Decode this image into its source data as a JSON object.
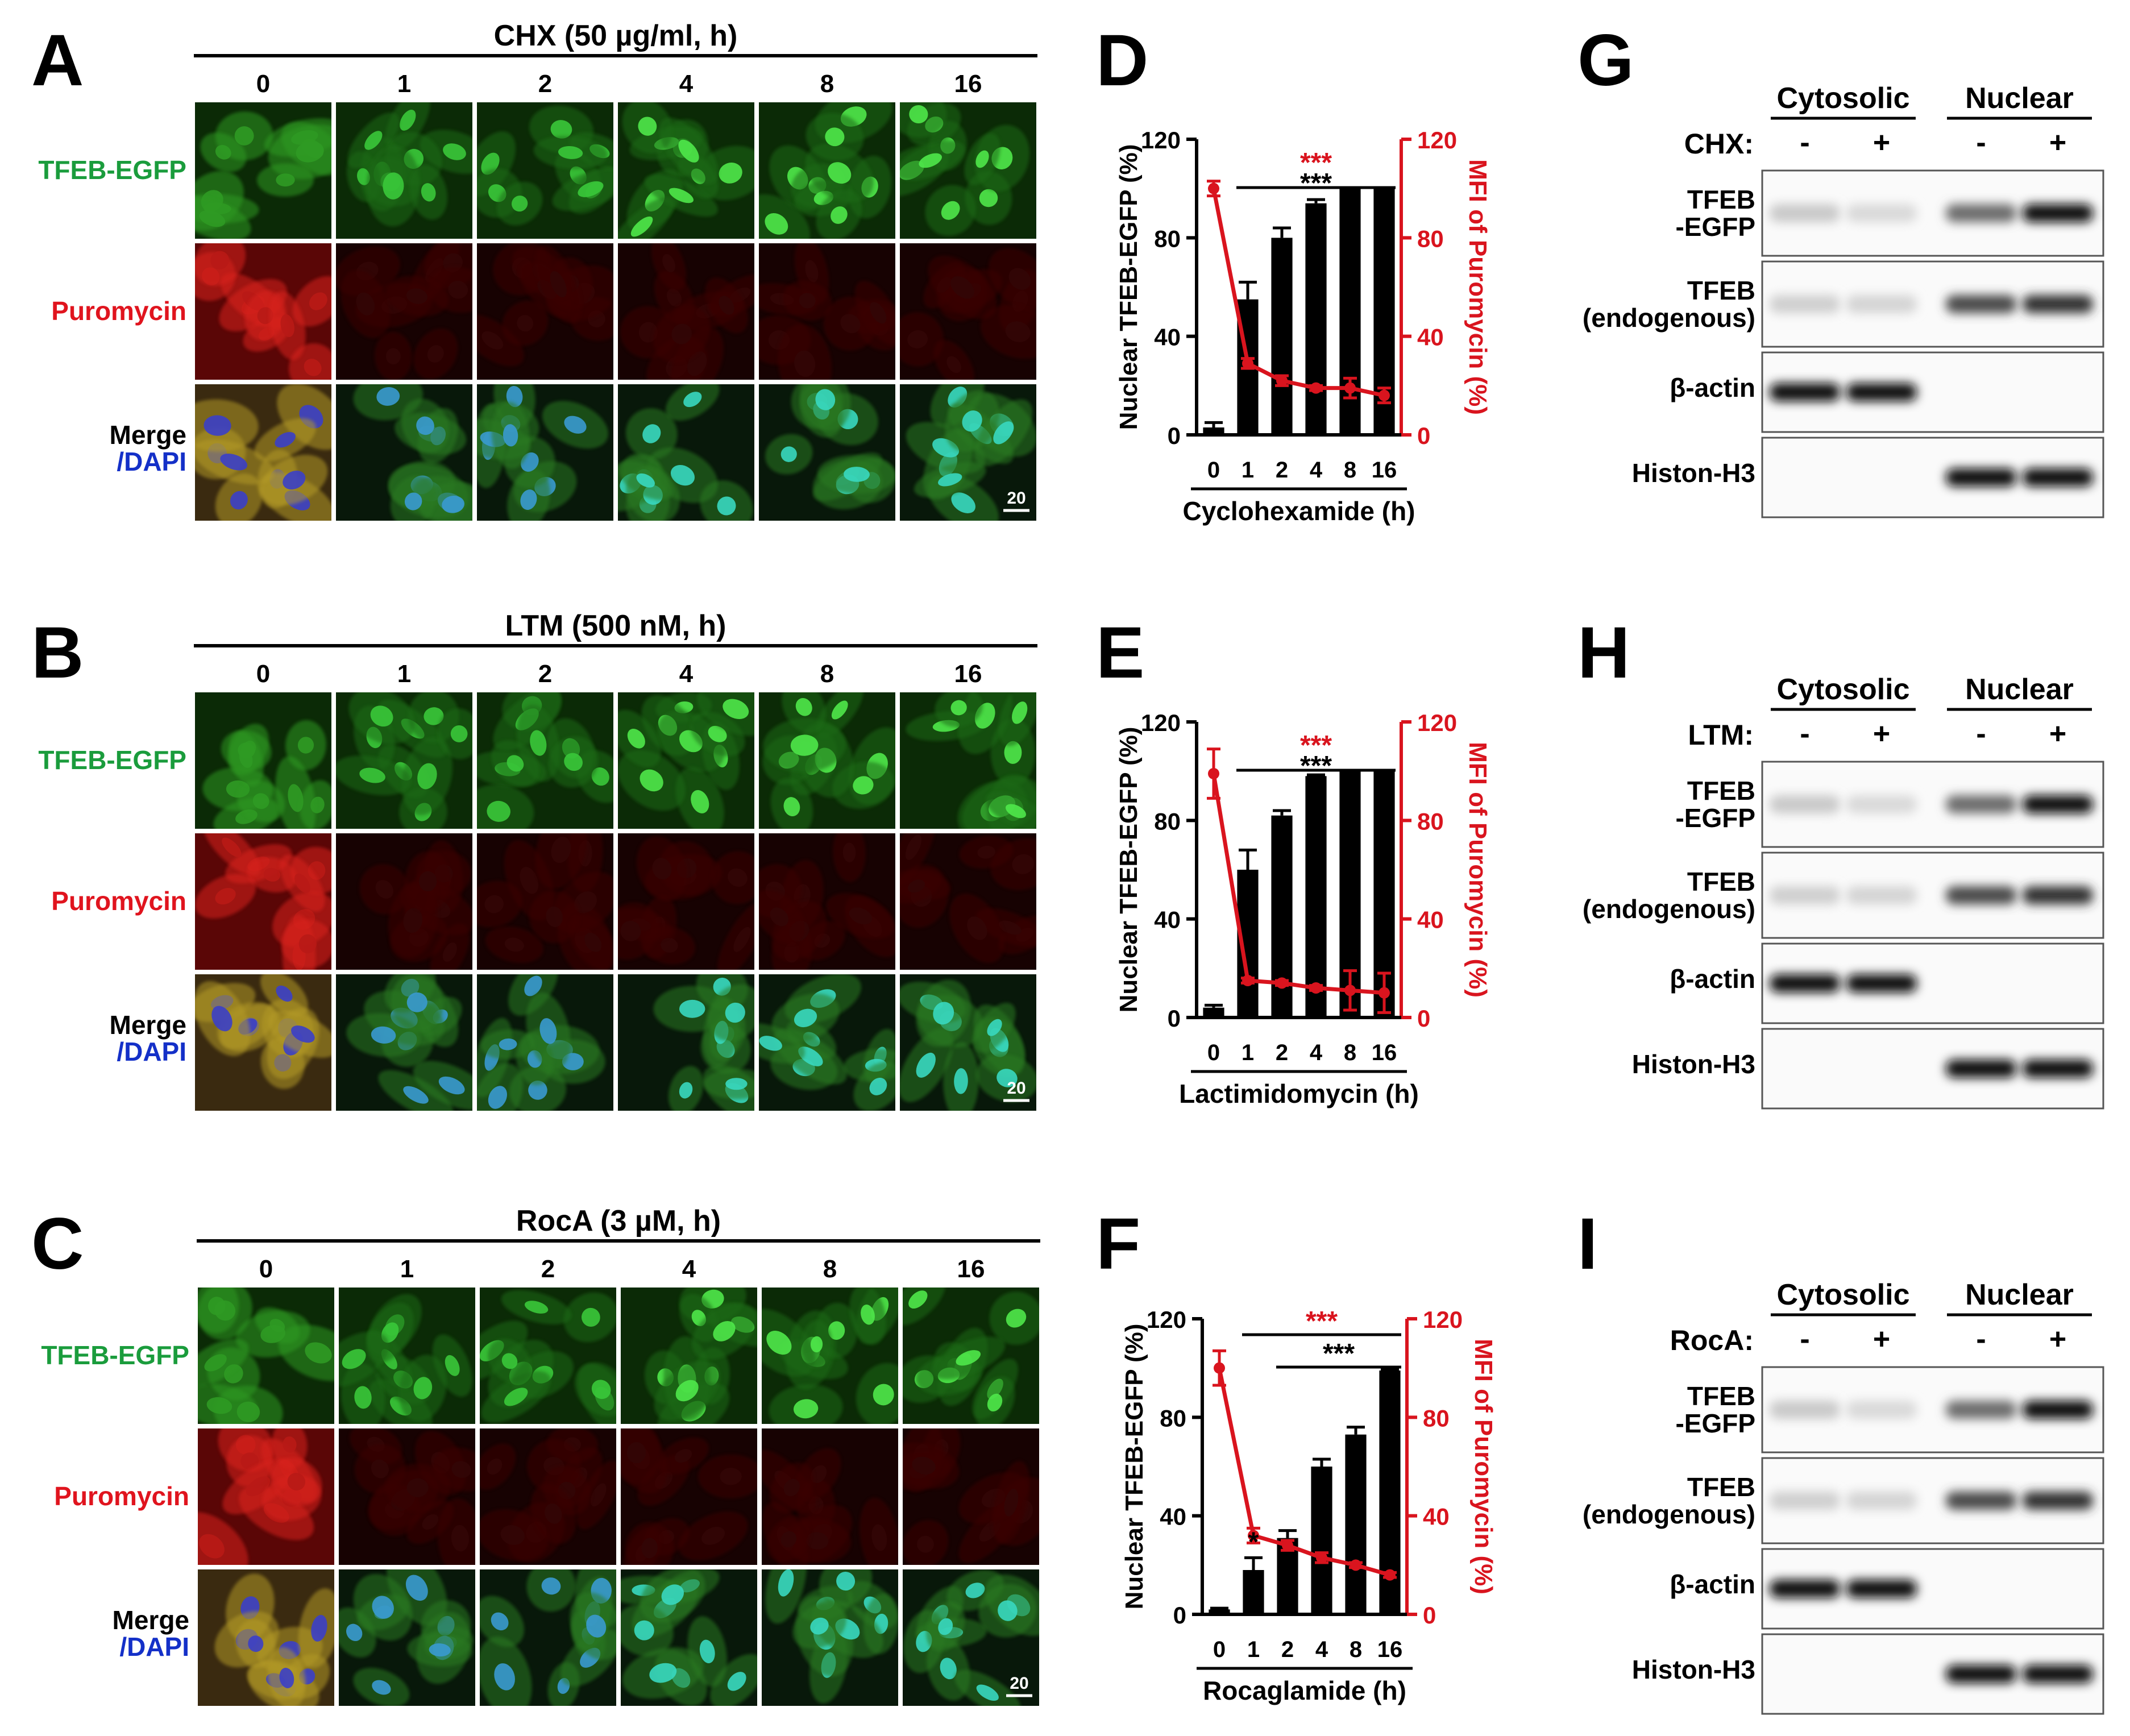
{
  "time_points": [
    "0",
    "1",
    "2",
    "4",
    "8",
    "16"
  ],
  "channels": {
    "tfeb": "TFEB-EGFP",
    "puro": "Puromycin",
    "merge_line1": "Merge",
    "merge_line2": "/DAPI"
  },
  "scale_bar": "20",
  "colors": {
    "green_label": "#1a9c3c",
    "red_label": "#e0141e",
    "blue_label": "#1430c8",
    "red_series": "#d9141e",
    "black": "#000000"
  },
  "panels": {
    "A": {
      "letter": "A",
      "title": "CHX (50 µg/ml, h)"
    },
    "B": {
      "letter": "B",
      "title": "LTM (500 nM, h)"
    },
    "C": {
      "letter": "C",
      "title": "RocA (3 µM, h)"
    },
    "D": {
      "letter": "D"
    },
    "E": {
      "letter": "E"
    },
    "F": {
      "letter": "F"
    },
    "G": {
      "letter": "G",
      "treatment": "CHX:"
    },
    "H": {
      "letter": "H",
      "treatment": "LTM:"
    },
    "I": {
      "letter": "I",
      "treatment": "RocA:"
    }
  },
  "blot": {
    "cytosolic": "Cytosolic",
    "nuclear": "Nuclear",
    "minus": "-",
    "plus": "+",
    "row_tfeb_egfp_1": "TFEB",
    "row_tfeb_egfp_2": "-EGFP",
    "row_tfeb_endo_1": "TFEB",
    "row_tfeb_endo_2": "(endogenous)",
    "row_actin": "β-actin",
    "row_histone": "Histon-H3"
  },
  "chart_common": {
    "ylabel_left": "Nuclear TFEB-EGFP (%)",
    "ylabel_right": "MFI of Puromycin (%)",
    "yticks": [
      "0",
      "40",
      "80",
      "120"
    ],
    "sig_three": "***",
    "sig_one": "*"
  },
  "chart_data": [
    {
      "panel": "D",
      "type": "bar",
      "categories": [
        "0",
        "1",
        "2",
        "4",
        "8",
        "16"
      ],
      "xlabel": "Cyclohexamide (h)",
      "ylabel": "Nuclear TFEB-EGFP (%)",
      "ylabel_right": "MFI of Puromycin (%)",
      "ylim": [
        0,
        120
      ],
      "y2lim": [
        0,
        120
      ],
      "bars": {
        "values": [
          3,
          55,
          80,
          94,
          100,
          100
        ],
        "errors": [
          2,
          7,
          4,
          1.5,
          0,
          0
        ]
      },
      "line": {
        "values": [
          100,
          29,
          22,
          19,
          19,
          16
        ],
        "errors": [
          3,
          2,
          2,
          1,
          4,
          3
        ]
      }
    },
    {
      "panel": "E",
      "type": "bar",
      "categories": [
        "0",
        "1",
        "2",
        "4",
        "8",
        "16"
      ],
      "xlabel": "Lactimidomycin (h)",
      "ylabel": "Nuclear TFEB-EGFP (%)",
      "ylabel_right": "MFI of Puromycin (%)",
      "ylim": [
        0,
        120
      ],
      "y2lim": [
        0,
        120
      ],
      "bars": {
        "values": [
          4,
          60,
          82,
          98,
          100,
          100
        ],
        "errors": [
          1,
          8,
          2,
          0.5,
          0,
          0
        ]
      },
      "line": {
        "values": [
          99,
          15,
          14,
          12,
          11,
          10
        ],
        "errors": [
          10,
          1,
          1,
          1,
          8,
          8
        ]
      }
    },
    {
      "panel": "F",
      "type": "bar",
      "categories": [
        "0",
        "1",
        "2",
        "4",
        "8",
        "16"
      ],
      "xlabel": "Rocaglamide (h)",
      "ylabel": "Nuclear TFEB-EGFP (%)",
      "ylabel_right": "MFI of Puromycin (%)",
      "ylim": [
        0,
        120
      ],
      "y2lim": [
        0,
        120
      ],
      "bars": {
        "values": [
          2,
          18,
          31,
          60,
          73,
          99
        ],
        "errors": [
          0.5,
          5,
          3,
          3,
          3,
          0.5
        ]
      },
      "line": {
        "values": [
          100,
          32,
          28,
          23,
          20,
          16
        ],
        "errors": [
          7,
          3,
          2,
          2,
          1,
          1
        ]
      }
    }
  ]
}
